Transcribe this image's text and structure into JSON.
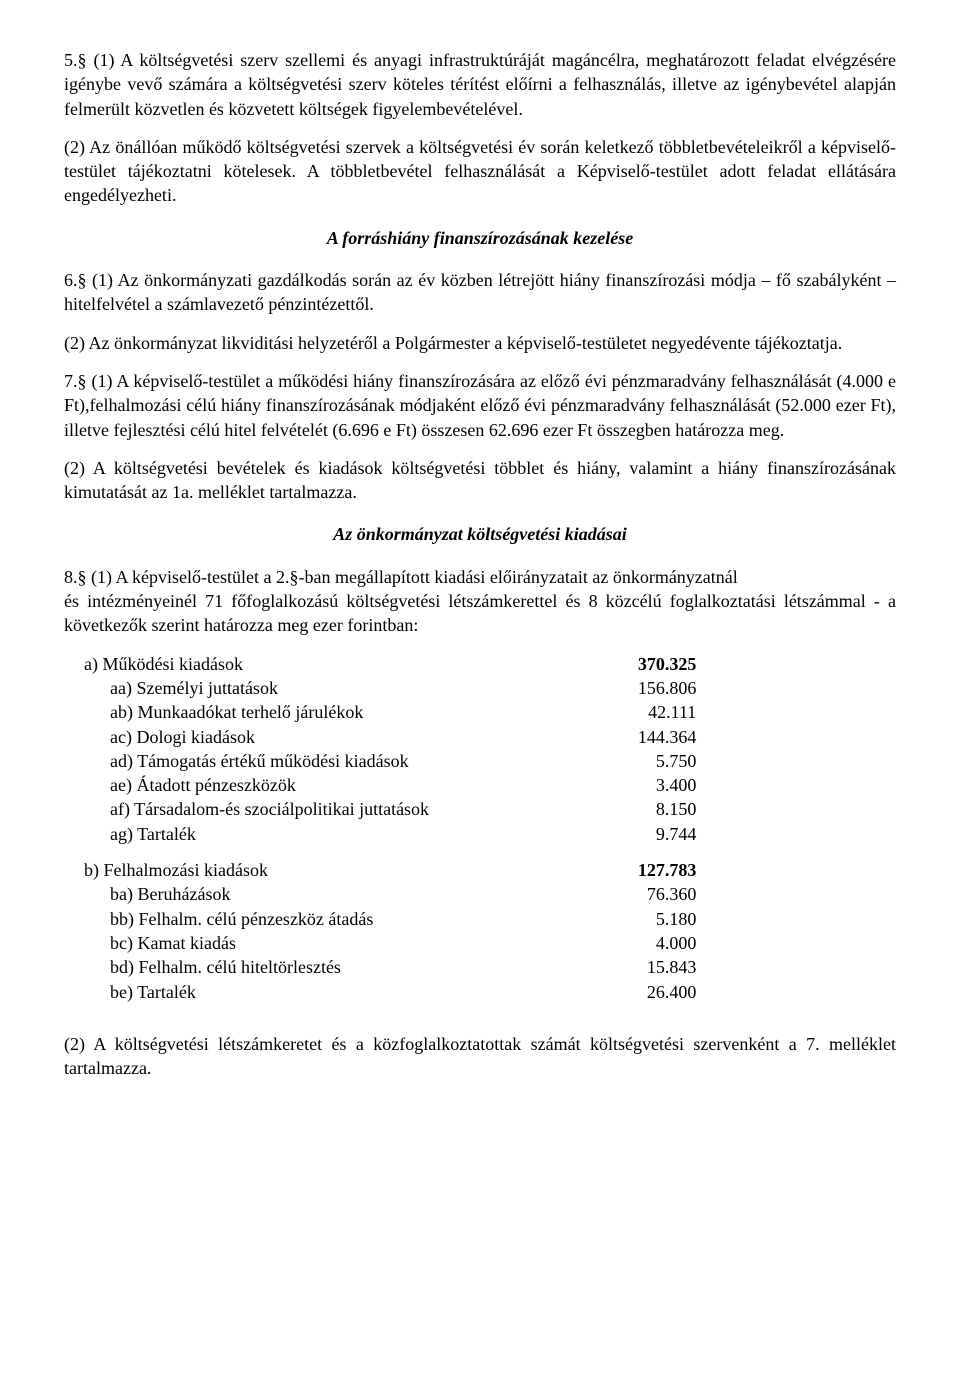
{
  "section5": {
    "p1": "5.§ (1)  A költségvetési szerv szellemi és anyagi infrastruktúráját magáncélra, meghatározott feladat elvégzésére igénybe vevő számára a költségvetési szerv köteles térítést előírni a felhasználás, illetve az igénybevétel alapján felmerült közvetlen és közvetett költségek figyelembevételével.",
    "p2": "(2) Az önállóan működő költségvetési szervek a költségvetési év során keletkező többletbevételeikről a képviselő-testület tájékoztatni kötelesek. A többletbevétel felhasználását a Képviselő-testület adott feladat ellátására engedélyezheti."
  },
  "heading_forras": "A forráshiány finanszírozásának kezelése",
  "section6": {
    "p1": "6.§ (1) Az önkormányzati gazdálkodás során az év közben létrejött hiány finanszírozási módja – fő szabályként – hitelfelvétel a számlavezető pénzintézettől.",
    "p2": "(2) Az önkormányzat likviditási helyzetéről a Polgármester a képviselő-testületet negyedévente  tájékoztatja."
  },
  "section7": {
    "p1": "7.§ (1) A képviselő-testület a működési hiány finanszírozására az előző évi pénzmaradvány felhasználását (4.000 e Ft),felhalmozási célú  hiány finanszírozásának módjaként  előző évi pénzmaradvány felhasználását (52.000 ezer Ft), illetve fejlesztési célú hitel felvételét (6.696 e Ft) összesen 62.696 ezer Ft összegben határozza meg.",
    "p2": "(2) A költségvetési bevételek és kiadások költségvetési többlet és hiány, valamint a hiány finanszírozásának kimutatását az  1a.  melléklet tartalmazza."
  },
  "heading_kiadasok": "Az önkormányzat költségvetési  kiadásai",
  "section8_intro": "8.§ (1) A képviselő-testület a 2.§-ban megállapított kiadási előirányzatait az önkormányzatnál",
  "section8_sub": "és intézményeinél 71 főfoglalkozású költségvetési létszámkerettel és 8 közcélú foglalkoztatási létszámmal  - a következők szerint határozza meg ezer forintban:",
  "blockA": {
    "head_label": "a)  Működési kiadások",
    "head_value": "370.325",
    "rows": [
      {
        "label": "aa) Személyi juttatások",
        "value": "156.806"
      },
      {
        "label": "ab) Munkaadókat terhelő járulékok",
        "value": "42.111"
      },
      {
        "label": "ac) Dologi kiadások",
        "value": "144.364"
      },
      {
        "label": "ad) Támogatás értékű működési kiadások",
        "value": "5.750"
      },
      {
        "label": "ae) Átadott pénzeszközök",
        "value": "3.400"
      },
      {
        "label": "af) Társadalom-és szociálpolitikai juttatások",
        "value": "8.150"
      },
      {
        "label": "ag) Tartalék",
        "value": "9.744"
      }
    ]
  },
  "blockB": {
    "head_label": "b)  Felhalmozási kiadások",
    "head_value": "127.783",
    "rows": [
      {
        "label": "ba) Beruházások",
        "value": "76.360"
      },
      {
        "label": "bb) Felhalm. célú pénzeszköz átadás",
        "value": "5.180"
      },
      {
        "label": "bc) Kamat kiadás",
        "value": "4.000"
      },
      {
        "label": "bd) Felhalm. célú hiteltörlesztés",
        "value": "15.843"
      },
      {
        "label": "be) Tartalék",
        "value": "26.400"
      }
    ]
  },
  "footer": "(2) A költségvetési létszámkeretet  és a közfoglalkoztatottak számát költségvetési szervenként a 7. melléklet tartalmazza."
}
